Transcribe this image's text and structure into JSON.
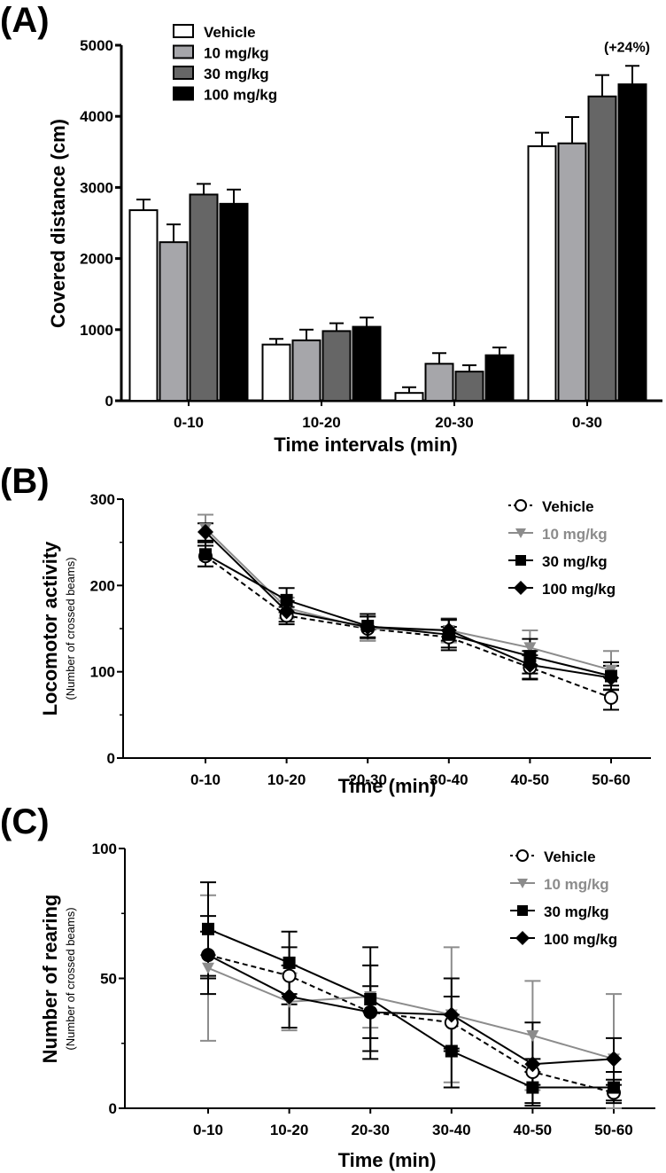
{
  "figure": {
    "panels": [
      "(A)",
      "(B)",
      "(C)"
    ]
  },
  "chart_data": [
    {
      "id": "A",
      "panel_label": "(A)",
      "type": "bar",
      "xlabel": "Time intervals (min)",
      "ylabel": "Covered distance (cm)",
      "ylim": [
        0,
        5000
      ],
      "yticks": [
        0,
        1000,
        2000,
        3000,
        4000,
        5000
      ],
      "categories": [
        "0-10",
        "10-20",
        "20-30",
        "0-30"
      ],
      "legend_position": "top-left",
      "annotation": {
        "text": "(+24%)",
        "category": "0-30",
        "series": "100 mg/kg"
      },
      "series": [
        {
          "name": "Vehicle",
          "fill": "#ffffff",
          "values": [
            2680,
            790,
            110,
            3580
          ],
          "errors": [
            150,
            80,
            80,
            190
          ]
        },
        {
          "name": "10 mg/kg",
          "fill": "#a6a6aa",
          "values": [
            2230,
            850,
            520,
            3620
          ],
          "errors": [
            250,
            150,
            150,
            370
          ]
        },
        {
          "name": "30 mg/kg",
          "fill": "#666666",
          "values": [
            2900,
            980,
            410,
            4280
          ],
          "errors": [
            150,
            110,
            90,
            300
          ]
        },
        {
          "name": "100 mg/kg",
          "fill": "#000000",
          "values": [
            2770,
            1040,
            640,
            4450
          ],
          "errors": [
            200,
            130,
            110,
            260
          ]
        }
      ]
    },
    {
      "id": "B",
      "panel_label": "(B)",
      "type": "line",
      "xlabel": "Time (min)",
      "ylabel": "Locomotor activity",
      "ylabel_sub": "(Number of crossed beams)",
      "ylim": [
        0,
        300
      ],
      "yticks": [
        0,
        100,
        200,
        300
      ],
      "yminor": [
        50,
        150,
        250
      ],
      "categories": [
        "0-10",
        "10-20",
        "20-30",
        "30-40",
        "40-50",
        "50-60"
      ],
      "legend_position": "top-right",
      "series": [
        {
          "name": "Vehicle",
          "color": "#000000",
          "marker": "circle-open",
          "dashed": true,
          "values": [
            234,
            165,
            150,
            140,
            105,
            70
          ],
          "errors": [
            12,
            10,
            14,
            12,
            14,
            14
          ]
        },
        {
          "name": "10 mg/kg",
          "color": "#8c8c8c",
          "marker": "triangle-down",
          "dashed": false,
          "values": [
            266,
            174,
            150,
            148,
            128,
            102
          ],
          "errors": [
            16,
            12,
            14,
            14,
            20,
            22
          ]
        },
        {
          "name": "30 mg/kg",
          "color": "#000000",
          "marker": "square",
          "dashed": false,
          "values": [
            236,
            183,
            153,
            143,
            118,
            95
          ],
          "errors": [
            14,
            14,
            14,
            18,
            20,
            16
          ]
        },
        {
          "name": "100 mg/kg",
          "color": "#000000",
          "marker": "diamond",
          "dashed": false,
          "values": [
            262,
            170,
            152,
            148,
            108,
            93
          ],
          "errors": [
            10,
            12,
            12,
            12,
            16,
            14
          ]
        }
      ]
    },
    {
      "id": "C",
      "panel_label": "(C)",
      "type": "line",
      "xlabel": "Time (min)",
      "ylabel": "Number of rearing",
      "ylabel_sub": "(Number of crossed beams)",
      "ylim": [
        0,
        100
      ],
      "yticks": [
        0,
        50,
        100
      ],
      "yminor": [
        25,
        75
      ],
      "categories": [
        "0-10",
        "10-20",
        "20-30",
        "30-40",
        "40-50",
        "50-60"
      ],
      "legend_position": "top-right",
      "series": [
        {
          "name": "Vehicle",
          "color": "#000000",
          "marker": "circle-open",
          "dashed": true,
          "values": [
            59,
            51,
            37,
            33,
            14,
            6
          ],
          "errors": [
            9,
            11,
            10,
            10,
            5,
            3
          ]
        },
        {
          "name": "10 mg/kg",
          "color": "#8c8c8c",
          "marker": "triangle-down",
          "dashed": false,
          "values": [
            54,
            41,
            43,
            36,
            28,
            19
          ],
          "errors": [
            28,
            11,
            12,
            26,
            21,
            25
          ]
        },
        {
          "name": "30 mg/kg",
          "color": "#000000",
          "marker": "square",
          "dashed": false,
          "values": [
            69,
            56,
            42,
            22,
            8,
            8
          ],
          "errors": [
            18,
            12,
            20,
            14,
            6,
            6
          ]
        },
        {
          "name": "100 mg/kg",
          "color": "#000000",
          "marker": "diamond",
          "dashed": false,
          "values": [
            59,
            43,
            37,
            36,
            17,
            19
          ],
          "errors": [
            15,
            12,
            18,
            14,
            16,
            8
          ]
        }
      ]
    }
  ]
}
